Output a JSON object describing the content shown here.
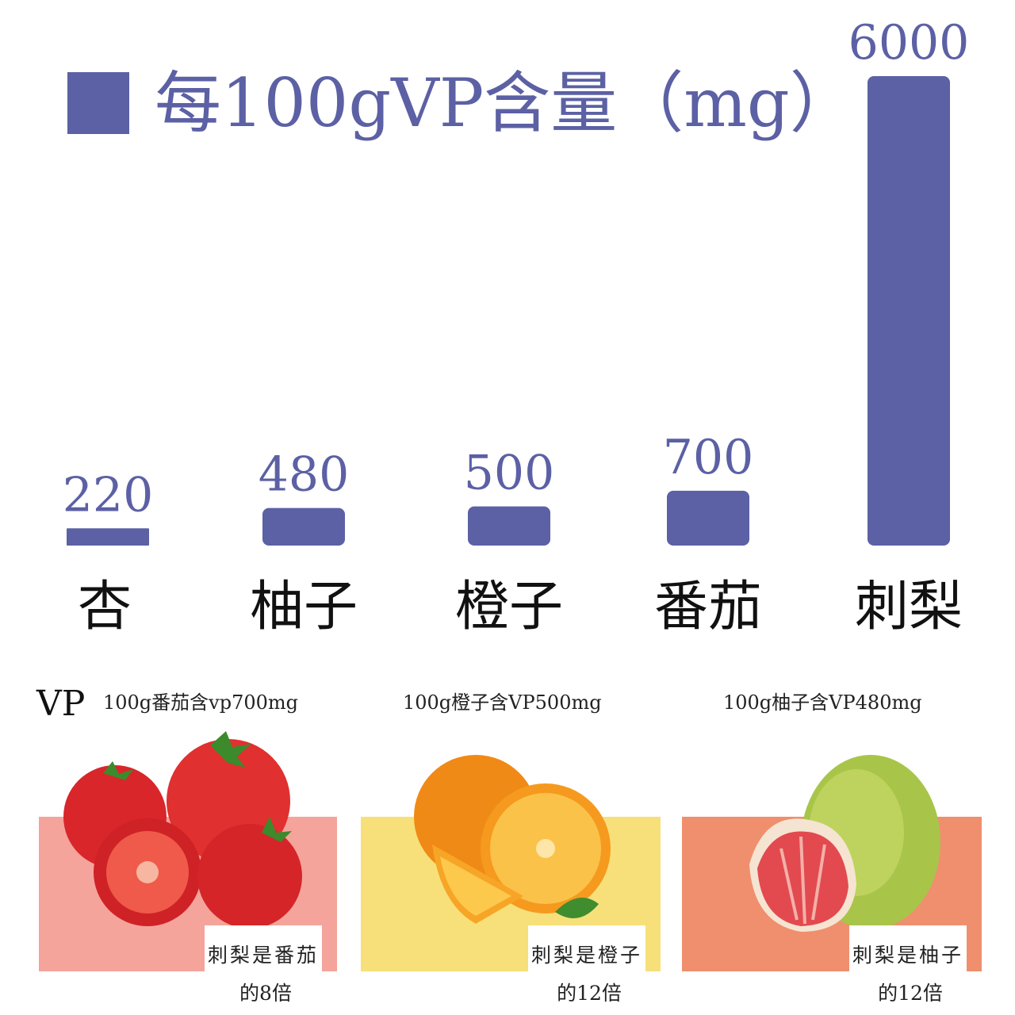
{
  "colors": {
    "bar": "#5c60a4",
    "tomato_panel": "#f4a49b",
    "orange_panel": "#f7e07a",
    "pomelo_panel": "#ef8f6e"
  },
  "legend": {
    "label": "每100gVP含量（mg）"
  },
  "chart_data": {
    "type": "bar",
    "title": "",
    "categories": [
      "杏",
      "柚子",
      "橙子",
      "番茄",
      "刺梨"
    ],
    "series": [
      {
        "name": "每100gVP含量（mg）",
        "values": [
          220,
          480,
          500,
          700,
          6000
        ],
        "labels": [
          "220",
          "480",
          "500",
          "700",
          "6000"
        ]
      }
    ],
    "ylim": [
      0,
      6000
    ],
    "grid": false,
    "legend_position": "top-left",
    "xlabel": "",
    "ylabel": ""
  },
  "bottom": {
    "vp_word": "VP",
    "cards": [
      {
        "fruit": "tomato-image",
        "caption": "100g番茄含vp700mg",
        "line1": "刺梨是番茄",
        "line2": "的8倍"
      },
      {
        "fruit": "orange-image",
        "caption": "100g橙子含VP500mg",
        "line1": "刺梨是橙子",
        "line2": "的12倍"
      },
      {
        "fruit": "pomelo-image",
        "caption": "100g柚子含VP480mg",
        "line1": "刺梨是柚子",
        "line2": "的12倍"
      }
    ]
  }
}
